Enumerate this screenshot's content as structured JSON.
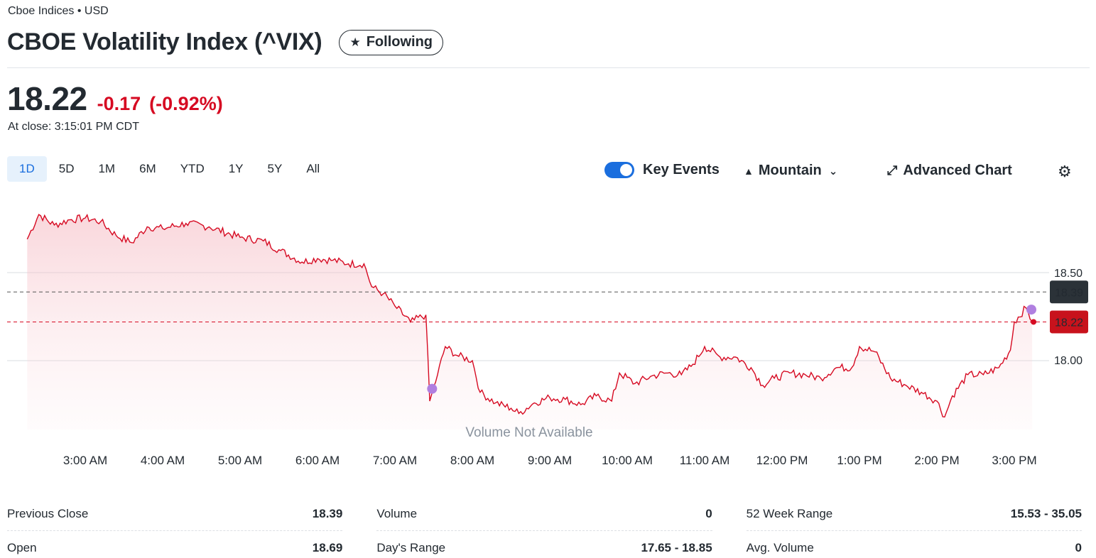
{
  "header": {
    "exchange": "Cboe Indices • USD",
    "title": "CBOE Volatility Index (^VIX)",
    "follow_label": "Following",
    "follow_icon": "star-icon"
  },
  "quote": {
    "price": "18.22",
    "change": "-0.17",
    "change_pct": "(-0.92%)",
    "close_time": "At close: 3:15:01 PM CDT",
    "change_color": "#d60a22"
  },
  "ranges": [
    "1D",
    "5D",
    "1M",
    "6M",
    "YTD",
    "1Y",
    "5Y",
    "All"
  ],
  "active_range": "1D",
  "toolbar": {
    "key_events_label": "Key Events",
    "key_events_on": true,
    "chart_type_label": "Mountain",
    "advanced_label": "Advanced Chart",
    "settings_icon": "gear-icon"
  },
  "chart_data": {
    "type": "area",
    "xlabels": [
      "3:00 AM",
      "4:00 AM",
      "5:00 AM",
      "6:00 AM",
      "7:00 AM",
      "8:00 AM",
      "9:00 AM",
      "10:00 AM",
      "11:00 AM",
      "12:00 PM",
      "1:00 PM",
      "2:00 PM",
      "3:00 PM"
    ],
    "yticks": [
      "18.50",
      "18.00"
    ],
    "ylim": [
      17.55,
      18.94
    ],
    "previous_close": "18.39",
    "last_price": "18.22",
    "volume_note": "Volume Not Available",
    "line_color": "#d60a22",
    "event_marker_color": "#b07fe0",
    "anchors": [
      [
        2.25,
        18.69
      ],
      [
        2.4,
        18.83
      ],
      [
        2.6,
        18.77
      ],
      [
        2.8,
        18.8
      ],
      [
        3.0,
        18.81
      ],
      [
        3.2,
        18.79
      ],
      [
        3.4,
        18.71
      ],
      [
        3.6,
        18.67
      ],
      [
        3.8,
        18.76
      ],
      [
        4.0,
        18.75
      ],
      [
        4.3,
        18.78
      ],
      [
        4.6,
        18.76
      ],
      [
        5.0,
        18.7
      ],
      [
        5.3,
        18.68
      ],
      [
        5.5,
        18.63
      ],
      [
        5.8,
        18.56
      ],
      [
        6.0,
        18.58
      ],
      [
        6.2,
        18.57
      ],
      [
        6.4,
        18.55
      ],
      [
        6.6,
        18.55
      ],
      [
        6.7,
        18.42
      ],
      [
        6.85,
        18.38
      ],
      [
        7.0,
        18.31
      ],
      [
        7.2,
        18.22
      ],
      [
        7.4,
        18.26
      ],
      [
        7.45,
        17.77
      ],
      [
        7.55,
        17.92
      ],
      [
        7.65,
        18.08
      ],
      [
        7.8,
        18.03
      ],
      [
        8.0,
        18.0
      ],
      [
        8.1,
        17.82
      ],
      [
        8.3,
        17.76
      ],
      [
        8.5,
        17.73
      ],
      [
        8.6,
        17.7
      ],
      [
        8.8,
        17.76
      ],
      [
        9.0,
        17.79
      ],
      [
        9.2,
        17.78
      ],
      [
        9.4,
        17.75
      ],
      [
        9.6,
        17.8
      ],
      [
        9.8,
        17.77
      ],
      [
        9.9,
        17.93
      ],
      [
        10.1,
        17.87
      ],
      [
        10.3,
        17.91
      ],
      [
        10.5,
        17.93
      ],
      [
        10.7,
        17.92
      ],
      [
        10.85,
        17.98
      ],
      [
        11.0,
        18.08
      ],
      [
        11.2,
        18.02
      ],
      [
        11.4,
        18.02
      ],
      [
        11.6,
        17.96
      ],
      [
        11.75,
        17.86
      ],
      [
        11.9,
        17.9
      ],
      [
        12.1,
        17.93
      ],
      [
        12.3,
        17.92
      ],
      [
        12.5,
        17.9
      ],
      [
        12.7,
        17.96
      ],
      [
        12.9,
        17.96
      ],
      [
        13.0,
        18.08
      ],
      [
        13.2,
        18.05
      ],
      [
        13.4,
        17.9
      ],
      [
        13.6,
        17.86
      ],
      [
        13.8,
        17.82
      ],
      [
        14.0,
        17.77
      ],
      [
        14.1,
        17.68
      ],
      [
        14.2,
        17.8
      ],
      [
        14.4,
        17.92
      ],
      [
        14.6,
        17.92
      ],
      [
        14.8,
        17.96
      ],
      [
        14.95,
        18.06
      ],
      [
        15.0,
        18.22
      ],
      [
        15.15,
        18.3
      ],
      [
        15.23,
        18.22
      ]
    ],
    "markers": [
      [
        7.48,
        17.84
      ],
      [
        15.22,
        18.29
      ]
    ]
  },
  "stats": [
    [
      {
        "label": "Previous Close",
        "value": "18.39"
      },
      {
        "label": "Open",
        "value": "18.69"
      }
    ],
    [
      {
        "label": "Volume",
        "value": "0"
      },
      {
        "label": "Day's Range",
        "value": "17.65 - 18.85"
      }
    ],
    [
      {
        "label": "52 Week Range",
        "value": "15.53 - 35.05"
      },
      {
        "label": "Avg. Volume",
        "value": "0"
      }
    ]
  ]
}
